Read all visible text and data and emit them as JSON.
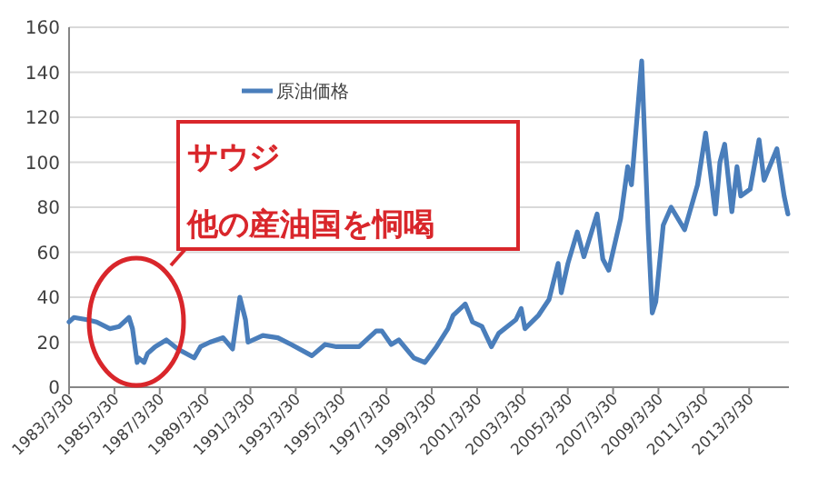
{
  "chart_data": {
    "type": "line",
    "x": [
      "1983-03-30",
      "1983-06-15",
      "1984-01-15",
      "1984-06-15",
      "1985-01-15",
      "1985-06-15",
      "1985-11-20",
      "1986-01-15",
      "1986-03-31",
      "1986-04-20",
      "1986-07-20",
      "1986-09-15",
      "1987-01-15",
      "1987-07-15",
      "1987-10-15",
      "1988-01-15",
      "1988-10-05",
      "1989-01-15",
      "1989-06-15",
      "1990-01-15",
      "1990-06-15",
      "1990-10-10",
      "1991-01-10",
      "1991-02-20",
      "1991-10-15",
      "1992-06-15",
      "1993-01-15",
      "1993-12-15",
      "1994-07-15",
      "1995-01-15",
      "1996-01-15",
      "1996-10-15",
      "1997-01-15",
      "1997-06-15",
      "1997-10-15",
      "1998-06-15",
      "1998-12-10",
      "1999-06-15",
      "1999-12-15",
      "2000-03-10",
      "2000-09-20",
      "2001-01-15",
      "2001-06-15",
      "2001-11-15",
      "2002-03-15",
      "2002-12-15",
      "2003-03-10",
      "2003-05-10",
      "2003-12-15",
      "2004-06-01",
      "2004-10-25",
      "2004-12-15",
      "2005-04-01",
      "2005-08-30",
      "2005-12-15",
      "2006-07-15",
      "2006-10-15",
      "2007-01-18",
      "2007-07-30",
      "2007-11-20",
      "2008-01-20",
      "2008-07-03",
      "2008-10-15",
      "2008-12-20",
      "2009-02-15",
      "2009-06-15",
      "2009-10-20",
      "2010-05-25",
      "2010-12-20",
      "2011-04-29",
      "2011-10-04",
      "2011-12-15",
      "2012-03-01",
      "2012-06-25",
      "2012-09-15",
      "2012-11-15",
      "2013-04-15",
      "2013-09-06",
      "2013-11-25",
      "2014-06-20",
      "2014-10-15",
      "2014-12-15"
    ],
    "series": [
      {
        "name": "原油価格",
        "color": "#4a7ebb",
        "values": [
          29,
          31,
          30,
          29,
          26,
          27,
          31,
          26,
          11,
          13,
          11,
          15,
          18,
          21,
          19,
          17,
          13,
          18,
          20,
          22,
          17,
          40,
          30,
          20,
          23,
          22,
          19,
          14,
          19,
          18,
          18,
          25,
          25,
          19,
          21,
          13,
          11,
          18,
          26,
          32,
          37,
          29,
          27,
          18,
          24,
          30,
          35,
          26,
          32,
          39,
          55,
          42,
          55,
          69,
          58,
          77,
          57,
          52,
          75,
          98,
          90,
          145,
          70,
          33,
          38,
          72,
          80,
          70,
          90,
          113,
          77,
          100,
          108,
          78,
          98,
          85,
          88,
          110,
          92,
          106,
          85,
          77
        ]
      }
    ],
    "xlim": [
      "1983-03-30",
      "2014-12-31"
    ],
    "xticks": [
      {
        "value": "1983-03-30",
        "label": "1983/3/30"
      },
      {
        "value": "1985-03-30",
        "label": "1985/3/30"
      },
      {
        "value": "1987-03-30",
        "label": "1987/3/30"
      },
      {
        "value": "1989-03-30",
        "label": "1989/3/30"
      },
      {
        "value": "1991-03-30",
        "label": "1991/3/30"
      },
      {
        "value": "1993-03-30",
        "label": "1993/3/30"
      },
      {
        "value": "1995-03-30",
        "label": "1995/3/30"
      },
      {
        "value": "1997-03-30",
        "label": "1997/3/30"
      },
      {
        "value": "1999-03-30",
        "label": "1999/3/30"
      },
      {
        "value": "2001-03-30",
        "label": "2001/3/30"
      },
      {
        "value": "2003-03-30",
        "label": "2003/3/30"
      },
      {
        "value": "2005-03-30",
        "label": "2005/3/30"
      },
      {
        "value": "2007-03-30",
        "label": "2007/3/30"
      },
      {
        "value": "2009-03-30",
        "label": "2009/3/30"
      },
      {
        "value": "2011-03-30",
        "label": "2011/3/30"
      },
      {
        "value": "2013-03-30",
        "label": "2013/3/30"
      }
    ],
    "ylim": [
      0,
      160
    ],
    "yticks": [
      0,
      20,
      40,
      60,
      80,
      100,
      120,
      140,
      160
    ],
    "grid": "y",
    "legend": "top left",
    "marker": "none",
    "line_style": "solid",
    "annotations": [
      "サウジ",
      "他の産油国を恫喝"
    ]
  }
}
